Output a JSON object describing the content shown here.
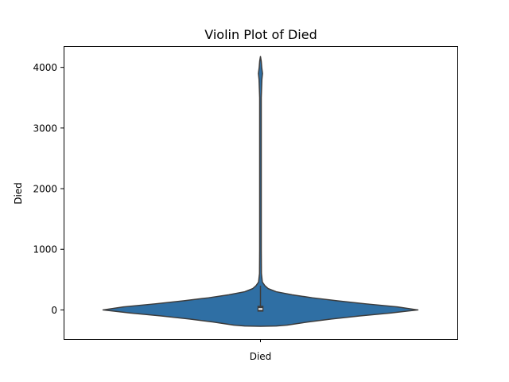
{
  "chart_data": {
    "type": "violin",
    "title": "Violin Plot of Died",
    "xlabel": "",
    "ylabel": "Died",
    "categories": [
      "Died"
    ],
    "ylim": [
      -480,
      4350
    ],
    "yticks": [
      0,
      1000,
      2000,
      3000,
      4000
    ],
    "grid": false,
    "legend": "none",
    "colors": {
      "body": "#2f6fa4",
      "edge": "#3c3c3c",
      "box": "#3c3c3c",
      "median": "#ffffff"
    },
    "density_profile": [
      {
        "y": -270,
        "halfwidth": 0.0
      },
      {
        "y": -265,
        "halfwidth": 0.1
      },
      {
        "y": -250,
        "halfwidth": 0.17
      },
      {
        "y": -200,
        "halfwidth": 0.3
      },
      {
        "y": -150,
        "halfwidth": 0.45
      },
      {
        "y": -100,
        "halfwidth": 0.63
      },
      {
        "y": -50,
        "halfwidth": 0.83
      },
      {
        "y": 0,
        "halfwidth": 1.0
      },
      {
        "y": 50,
        "halfwidth": 0.87
      },
      {
        "y": 100,
        "halfwidth": 0.67
      },
      {
        "y": 150,
        "halfwidth": 0.49
      },
      {
        "y": 200,
        "halfwidth": 0.33
      },
      {
        "y": 250,
        "halfwidth": 0.2
      },
      {
        "y": 300,
        "halfwidth": 0.1
      },
      {
        "y": 350,
        "halfwidth": 0.05
      },
      {
        "y": 400,
        "halfwidth": 0.028
      },
      {
        "y": 460,
        "halfwidth": 0.012
      },
      {
        "y": 600,
        "halfwidth": 0.006
      },
      {
        "y": 1000,
        "halfwidth": 0.005
      },
      {
        "y": 2000,
        "halfwidth": 0.005
      },
      {
        "y": 3000,
        "halfwidth": 0.005
      },
      {
        "y": 3500,
        "halfwidth": 0.005
      },
      {
        "y": 3800,
        "halfwidth": 0.009
      },
      {
        "y": 3900,
        "halfwidth": 0.013
      },
      {
        "y": 4000,
        "halfwidth": 0.008
      },
      {
        "y": 4100,
        "halfwidth": 0.005
      },
      {
        "y": 4180,
        "halfwidth": 0.0
      }
    ],
    "box": {
      "q1": -25,
      "median": 15,
      "q3": 65,
      "whisker_low": -25,
      "whisker_high": 400
    }
  }
}
